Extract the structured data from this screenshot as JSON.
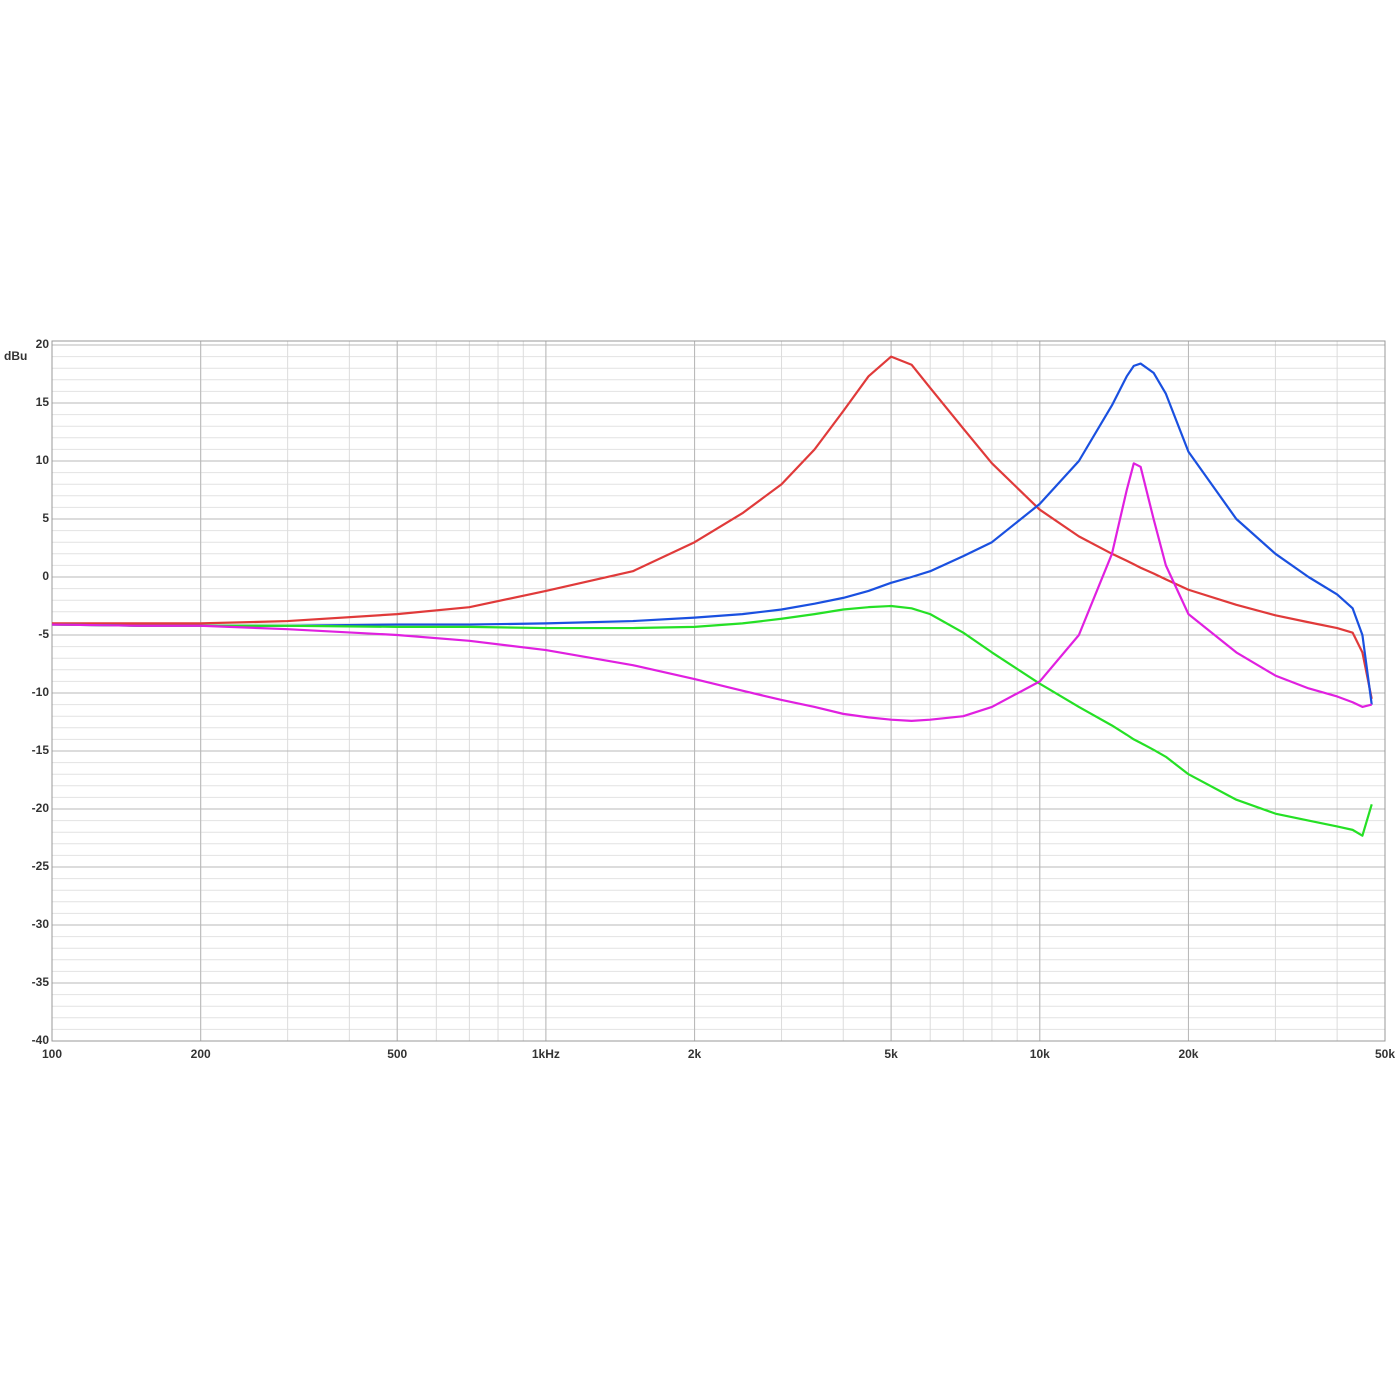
{
  "chart_data": {
    "type": "line",
    "y_label": "dBu",
    "xscale": "log",
    "grid": true,
    "x": [
      100,
      150,
      200,
      300,
      500,
      700,
      1000,
      1500,
      2000,
      2500,
      3000,
      3500,
      4000,
      4500,
      5000,
      5500,
      6000,
      7000,
      8000,
      10000,
      12000,
      14000,
      15000,
      15500,
      16000,
      17000,
      18000,
      20000,
      25000,
      30000,
      35000,
      40000,
      43000,
      45000,
      47000
    ],
    "series": [
      {
        "color": "#e03a3a",
        "values": [
          -4,
          -4,
          -4,
          -3.8,
          -3.2,
          -2.6,
          -1.2,
          0.5,
          3,
          5.5,
          8,
          11,
          14.3,
          17.3,
          19,
          18.3,
          16.3,
          12.8,
          9.8,
          5.8,
          3.5,
          2,
          1.4,
          1.1,
          0.8,
          0.3,
          -0.2,
          -1.1,
          -2.4,
          -3.3,
          -3.9,
          -4.4,
          -4.8,
          -6.5,
          -10.5
        ]
      },
      {
        "color": "#1a50e0",
        "values": [
          -4.1,
          -4.2,
          -4.2,
          -4.2,
          -4.1,
          -4.1,
          -4,
          -3.8,
          -3.5,
          -3.2,
          -2.8,
          -2.3,
          -1.8,
          -1.2,
          -0.5,
          0,
          0.5,
          1.8,
          3,
          6.3,
          10,
          14.8,
          17.3,
          18.2,
          18.4,
          17.6,
          15.8,
          10.8,
          5,
          2,
          0,
          -1.5,
          -2.7,
          -5,
          -11
        ]
      },
      {
        "color": "#25e025",
        "values": [
          -4.1,
          -4.2,
          -4.2,
          -4.2,
          -4.3,
          -4.3,
          -4.4,
          -4.4,
          -4.3,
          -4,
          -3.6,
          -3.2,
          -2.8,
          -2.6,
          -2.5,
          -2.7,
          -3.2,
          -4.8,
          -6.5,
          -9.2,
          -11.2,
          -12.8,
          -13.6,
          -14,
          -14.3,
          -14.9,
          -15.5,
          -17,
          -19.2,
          -20.4,
          -21,
          -21.5,
          -21.8,
          -22.3,
          -19.6
        ]
      },
      {
        "color": "#e020e0",
        "values": [
          -4.1,
          -4.2,
          -4.2,
          -4.5,
          -5,
          -5.5,
          -6.3,
          -7.6,
          -8.8,
          -9.8,
          -10.6,
          -11.2,
          -11.8,
          -12.1,
          -12.3,
          -12.4,
          -12.3,
          -12,
          -11.2,
          -9,
          -5,
          2,
          7.5,
          9.8,
          9.5,
          5,
          1,
          -3.2,
          -6.5,
          -8.5,
          -9.6,
          -10.3,
          -10.8,
          -11.2,
          -11
        ]
      }
    ],
    "xlim": [
      100,
      50000
    ],
    "xticks": [
      100,
      200,
      500,
      {
        "value": 1000,
        "label": "1kHz"
      },
      {
        "value": 2000,
        "label": "2k"
      },
      {
        "value": 5000,
        "label": "5k"
      },
      {
        "value": 10000,
        "label": "10k"
      },
      {
        "value": 20000,
        "label": "20k"
      },
      {
        "value": 50000,
        "label": "50k"
      }
    ],
    "ylim": [
      -40,
      20
    ],
    "yticks": [
      20,
      15,
      10,
      5,
      0,
      -5,
      -10,
      -15,
      -20,
      -25,
      -30,
      -35,
      -40
    ]
  }
}
